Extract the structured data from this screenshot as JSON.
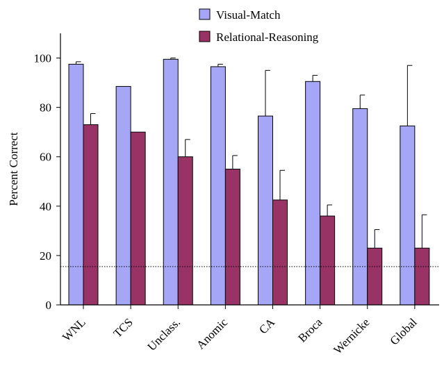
{
  "chart_data": {
    "type": "bar",
    "categories": [
      "WNL",
      "TCS",
      "Unclass.",
      "Anomic",
      "CA",
      "Broca",
      "Wernicke",
      "Global"
    ],
    "series": [
      {
        "name": "Visual-Match",
        "color": "#a6a6f7",
        "values": [
          97.5,
          88.5,
          99.5,
          96.5,
          76.5,
          90.5,
          79.5,
          72.5
        ],
        "error_upper": [
          98.5,
          88.5,
          100.0,
          97.5,
          95.0,
          93.0,
          85.0,
          97.0
        ]
      },
      {
        "name": "Relational-Reasoning",
        "color": "#993366",
        "values": [
          73.0,
          70.0,
          60.0,
          55.0,
          42.5,
          36.0,
          23.0,
          23.0
        ],
        "error_upper": [
          77.5,
          70.0,
          67.0,
          60.5,
          54.5,
          40.5,
          30.5,
          36.5
        ]
      }
    ],
    "ylabel": "Percent Correct",
    "xlabel": "",
    "ylim": [
      0,
      110
    ],
    "yticks": [
      0,
      20,
      40,
      60,
      80,
      100
    ],
    "reference_line": {
      "value": 15.5,
      "style": "dotted"
    },
    "legend": {
      "placement": "top"
    },
    "grid": false
  }
}
